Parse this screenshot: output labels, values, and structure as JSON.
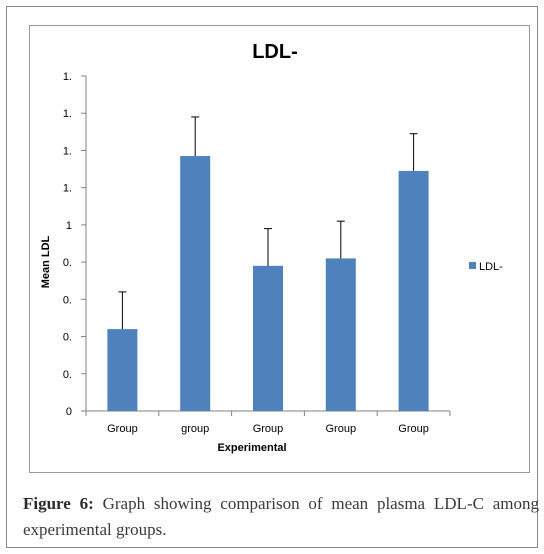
{
  "chart_data": {
    "type": "bar",
    "title": "LDL-",
    "xlabel": "Experimental",
    "ylabel": "Mean LDL",
    "categories": [
      "Group",
      "group",
      "Group",
      "Group",
      "Group"
    ],
    "series": [
      {
        "name": "LDL-",
        "values": [
          0.44,
          1.37,
          0.78,
          0.82,
          1.29
        ],
        "errors": [
          0.2,
          0.21,
          0.2,
          0.2,
          0.2
        ]
      }
    ],
    "ytick_labels": [
      "0",
      "0.",
      "0.",
      "0.",
      "0.",
      "1",
      "1.",
      "1.",
      "1.",
      "1."
    ],
    "ylim": [
      0,
      1.8
    ],
    "grid": false,
    "legend_position": "right",
    "bar_color": "#4f81bd"
  },
  "caption": {
    "label": "Figure 6:",
    "text": " Graph showing comparison of mean plasma LDL-C among experimental groups."
  }
}
